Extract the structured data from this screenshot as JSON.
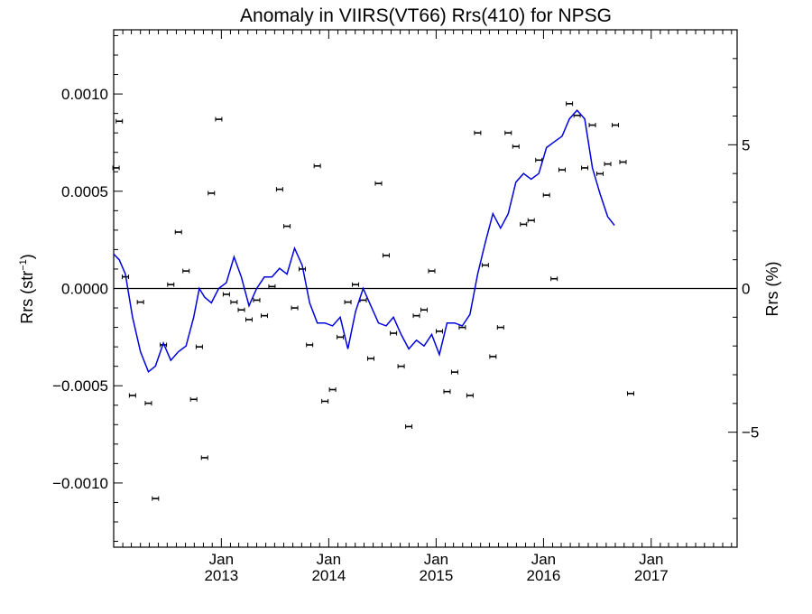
{
  "chart_data": {
    "type": "scatter",
    "title": "Anomaly in VIIRS(VT66) Rrs(410) for NPSG",
    "ylabel": "Rrs (str",
    "ylabel_sup": "−1",
    "ylabel_close": ")",
    "y2label": "Rrs (%)",
    "ylim": [
      -0.00133,
      0.00133
    ],
    "y2lim": [
      -9.0,
      9.0
    ],
    "xlim": [
      "2012-01-01",
      "2017-10-20"
    ],
    "yticks": [
      {
        "value": 0.001,
        "label": "0.0010"
      },
      {
        "value": 0.0005,
        "label": "0.0005"
      },
      {
        "value": 0.0,
        "label": "0.0000"
      },
      {
        "value": -0.0005,
        "label": "−0.0005"
      },
      {
        "value": -0.001,
        "label": "−0.0010"
      }
    ],
    "y2ticks": [
      {
        "value": 5,
        "label": "5"
      },
      {
        "value": 0,
        "label": "0"
      },
      {
        "value": -5,
        "label": "−5"
      }
    ],
    "xticks": [
      {
        "date": "2013-01-01",
        "month": "Jan",
        "year": "2013"
      },
      {
        "date": "2014-01-01",
        "month": "Jan",
        "year": "2014"
      },
      {
        "date": "2015-01-01",
        "month": "Jan",
        "year": "2015"
      },
      {
        "date": "2016-01-01",
        "month": "Jan",
        "year": "2016"
      },
      {
        "date": "2017-01-01",
        "month": "Jan",
        "year": "2017"
      }
    ],
    "zero_line": true,
    "colors": {
      "points": "#000000",
      "line": "#0000dd",
      "axis": "#000000"
    },
    "series": [
      {
        "axis": "left",
        "style": "points_with_errorbars",
        "points": [
          [
            "2012-01-09",
            0.00062
          ],
          [
            "2012-01-20",
            0.00086
          ],
          [
            "2012-02-10",
            6e-05
          ],
          [
            "2012-03-05",
            -0.00055
          ],
          [
            "2012-04-01",
            -7e-05
          ],
          [
            "2012-04-28",
            -0.00059
          ],
          [
            "2012-05-22",
            -0.00108
          ],
          [
            "2012-06-18",
            -0.00029
          ],
          [
            "2012-07-13",
            2e-05
          ],
          [
            "2012-08-08",
            0.00029
          ],
          [
            "2012-09-03",
            9e-05
          ],
          [
            "2012-09-29",
            -0.00057
          ],
          [
            "2012-10-18",
            -0.0003
          ],
          [
            "2012-11-05",
            -0.00087
          ],
          [
            "2012-11-28",
            0.00049
          ],
          [
            "2012-12-23",
            0.00087
          ],
          [
            "2013-01-18",
            -3e-05
          ],
          [
            "2013-02-13",
            -7e-05
          ],
          [
            "2013-03-10",
            -0.00011
          ],
          [
            "2013-04-05",
            -0.00016
          ],
          [
            "2013-05-01",
            -6e-05
          ],
          [
            "2013-05-27",
            -0.00014
          ],
          [
            "2013-06-22",
            1e-05
          ],
          [
            "2013-07-18",
            0.00051
          ],
          [
            "2013-08-12",
            0.00032
          ],
          [
            "2013-09-07",
            -0.0001
          ],
          [
            "2013-10-03",
            0.0001
          ],
          [
            "2013-10-28",
            -0.00029
          ],
          [
            "2013-11-23",
            0.00063
          ],
          [
            "2013-12-19",
            -0.00058
          ],
          [
            "2014-01-14",
            -0.00052
          ],
          [
            "2014-02-09",
            -0.00025
          ],
          [
            "2014-03-07",
            -7e-05
          ],
          [
            "2014-04-02",
            2e-05
          ],
          [
            "2014-04-28",
            -6e-05
          ],
          [
            "2014-05-24",
            -0.00036
          ],
          [
            "2014-06-19",
            0.00054
          ],
          [
            "2014-07-15",
            0.00017
          ],
          [
            "2014-08-09",
            -0.00023
          ],
          [
            "2014-09-04",
            -0.0004
          ],
          [
            "2014-09-30",
            -0.00071
          ],
          [
            "2014-10-26",
            -0.00014
          ],
          [
            "2014-11-21",
            -0.00011
          ],
          [
            "2014-12-17",
            9e-05
          ],
          [
            "2015-01-12",
            -0.00022
          ],
          [
            "2015-02-07",
            -0.00053
          ],
          [
            "2015-03-05",
            -0.00043
          ],
          [
            "2015-03-31",
            -0.0002
          ],
          [
            "2015-04-26",
            -0.00055
          ],
          [
            "2015-05-22",
            0.0008
          ],
          [
            "2015-06-17",
            0.00012
          ],
          [
            "2015-07-13",
            -0.00035
          ],
          [
            "2015-08-08",
            -0.0002
          ],
          [
            "2015-09-03",
            0.0008
          ],
          [
            "2015-09-29",
            0.00073
          ],
          [
            "2015-10-25",
            0.00033
          ],
          [
            "2015-11-20",
            0.00035
          ],
          [
            "2015-12-16",
            0.00066
          ],
          [
            "2016-01-11",
            0.00048
          ],
          [
            "2016-02-06",
            5e-05
          ],
          [
            "2016-03-04",
            0.00061
          ],
          [
            "2016-03-29",
            0.00095
          ],
          [
            "2016-04-24",
            0.00089
          ],
          [
            "2016-05-20",
            0.00062
          ],
          [
            "2016-06-15",
            0.00084
          ],
          [
            "2016-07-11",
            0.00059
          ],
          [
            "2016-08-06",
            0.00064
          ],
          [
            "2016-09-01",
            0.00084
          ],
          [
            "2016-09-27",
            0.00065
          ],
          [
            "2016-10-23",
            -0.00054
          ]
        ]
      },
      {
        "axis": "right",
        "style": "line",
        "points": [
          [
            "2012-01-01",
            1.2
          ],
          [
            "2012-01-20",
            1.0
          ],
          [
            "2012-02-10",
            0.5
          ],
          [
            "2012-03-05",
            -1.0
          ],
          [
            "2012-04-01",
            -2.2
          ],
          [
            "2012-04-28",
            -2.9
          ],
          [
            "2012-05-22",
            -2.7
          ],
          [
            "2012-06-18",
            -1.9
          ],
          [
            "2012-07-13",
            -2.5
          ],
          [
            "2012-08-08",
            -2.2
          ],
          [
            "2012-09-03",
            -2.0
          ],
          [
            "2012-09-29",
            -1.0
          ],
          [
            "2012-10-18",
            0.0
          ],
          [
            "2012-11-05",
            -0.3
          ],
          [
            "2012-11-28",
            -0.5
          ],
          [
            "2012-12-23",
            0.0
          ],
          [
            "2013-01-18",
            0.2
          ],
          [
            "2013-02-13",
            1.1
          ],
          [
            "2013-03-10",
            0.4
          ],
          [
            "2013-04-05",
            -0.6
          ],
          [
            "2013-05-01",
            0.0
          ],
          [
            "2013-05-27",
            0.4
          ],
          [
            "2013-06-22",
            0.4
          ],
          [
            "2013-07-18",
            0.7
          ],
          [
            "2013-08-12",
            0.5
          ],
          [
            "2013-09-07",
            1.4
          ],
          [
            "2013-10-03",
            0.8
          ],
          [
            "2013-10-28",
            -0.5
          ],
          [
            "2013-11-23",
            -1.2
          ],
          [
            "2013-12-19",
            -1.2
          ],
          [
            "2014-01-14",
            -1.3
          ],
          [
            "2014-02-09",
            -1.0
          ],
          [
            "2014-03-07",
            -2.1
          ],
          [
            "2014-04-02",
            -0.8
          ],
          [
            "2014-04-28",
            0.0
          ],
          [
            "2014-05-24",
            -0.6
          ],
          [
            "2014-06-19",
            -1.2
          ],
          [
            "2014-07-15",
            -1.3
          ],
          [
            "2014-08-09",
            -1.0
          ],
          [
            "2014-09-04",
            -1.6
          ],
          [
            "2014-09-30",
            -2.1
          ],
          [
            "2014-10-26",
            -1.8
          ],
          [
            "2014-11-21",
            -2.0
          ],
          [
            "2014-12-17",
            -1.6
          ],
          [
            "2015-01-12",
            -2.3
          ],
          [
            "2015-02-07",
            -1.2
          ],
          [
            "2015-03-05",
            -1.2
          ],
          [
            "2015-03-31",
            -1.3
          ],
          [
            "2015-04-26",
            -0.9
          ],
          [
            "2015-05-22",
            0.5
          ],
          [
            "2015-06-17",
            1.6
          ],
          [
            "2015-07-13",
            2.6
          ],
          [
            "2015-08-08",
            2.1
          ],
          [
            "2015-09-03",
            2.6
          ],
          [
            "2015-09-29",
            3.7
          ],
          [
            "2015-10-25",
            4.0
          ],
          [
            "2015-11-20",
            3.8
          ],
          [
            "2015-12-16",
            4.0
          ],
          [
            "2016-01-11",
            4.9
          ],
          [
            "2016-02-06",
            5.1
          ],
          [
            "2016-03-04",
            5.3
          ],
          [
            "2016-03-29",
            5.9
          ],
          [
            "2016-04-24",
            6.2
          ],
          [
            "2016-05-20",
            5.9
          ],
          [
            "2016-06-15",
            4.2
          ],
          [
            "2016-07-11",
            3.3
          ],
          [
            "2016-08-06",
            2.5
          ],
          [
            "2016-08-29",
            2.2
          ]
        ]
      }
    ]
  }
}
